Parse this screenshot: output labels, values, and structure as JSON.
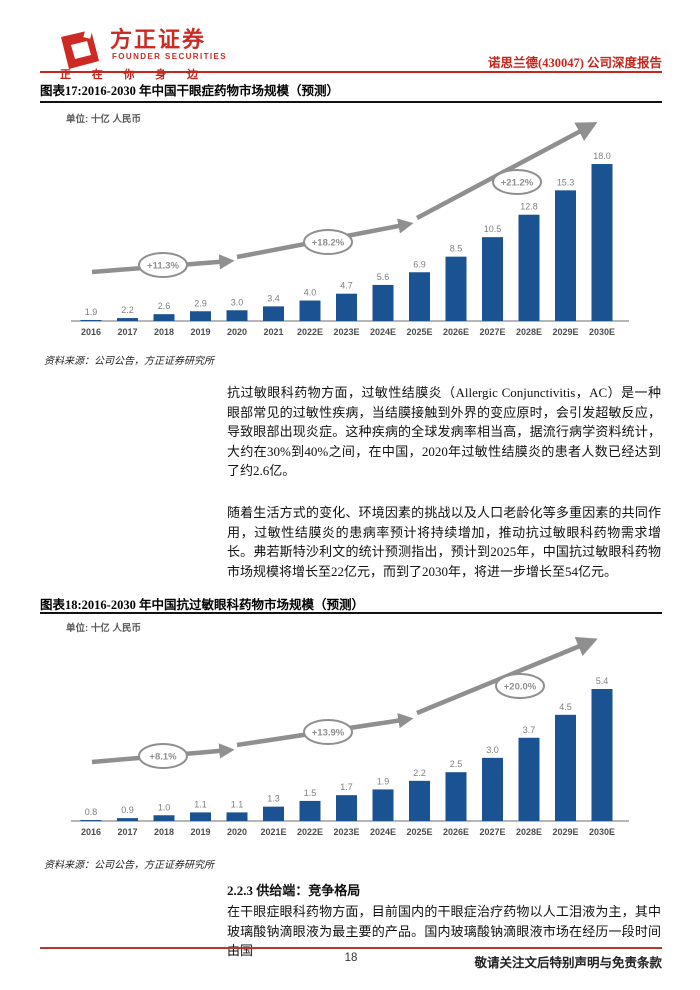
{
  "header": {
    "brand_cn": "方正证券",
    "brand_en": "FOUNDER SECURITIES",
    "slogan": "正 在 你 身 边",
    "report_tag": "诺思兰德(430047) 公司深度报告"
  },
  "colors": {
    "brand_red": "#ce2a24",
    "bar_blue": "#1b5291",
    "arrow_gray": "#8f8f8f",
    "value_label_gray": "#7f7f7f",
    "axis_label_gray": "#4d4d4d",
    "footer_rule_red": "#b03a2e"
  },
  "body": {
    "para1": "抗过敏眼科药物方面，过敏性结膜炎（Allergic Conjunctivitis，AC）是一种眼部常见的过敏性疾病，当结膜接触到外界的变应原时，会引发超敏反应，导致眼部出现炎症。这种疾病的全球发病率相当高，据流行病学资料统计，大约在30%到40%之间，在中国，2020年过敏性结膜炎的患者人数已经达到了约2.6亿。",
    "para2": "随着生活方式的变化、环境因素的挑战以及人口老龄化等多重因素的共同作用，过敏性结膜炎的患病率预计将持续增加，推动抗过敏眼科药物需求增长。弗若斯特沙利文的统计预测指出，预计到2025年，中国抗过敏眼科药物市场规模将增长至22亿元，而到了2030年，将进一步增长至54亿元。",
    "section_heading": "2.2.3 供给端：竞争格局",
    "para3": "在干眼症眼科药物方面，目前国内的干眼症治疗药物以人工泪液为主，其中玻璃酸钠滴眼液为最主要的产品。国内玻璃酸钠滴眼液市场在经历一段时间由国"
  },
  "footer": {
    "page_number": "18",
    "notice": "敬请关注文后特别声明与免责条款"
  },
  "chart_data": [
    {
      "type": "bar",
      "title": "图表17:2016-2030 年中国干眼症药物市场规模（预测）",
      "unit": "单位: 十亿 人民币",
      "source": "资料来源：公司公告，方正证券研究所",
      "categories": [
        "2016",
        "2017",
        "2018",
        "2019",
        "2020",
        "2021",
        "2022E",
        "2023E",
        "2024E",
        "2025E",
        "2026E",
        "2027E",
        "2028E",
        "2029E",
        "2030E"
      ],
      "values": [
        1.9,
        2.2,
        2.6,
        2.9,
        3.0,
        3.4,
        4.0,
        4.7,
        5.6,
        6.9,
        8.5,
        10.5,
        12.8,
        15.3,
        18.0
      ],
      "growth_annotations": [
        "+11.3%",
        "+18.2%",
        "+21.2%"
      ],
      "xlabel": "",
      "ylabel": "",
      "ylim": [
        1.9,
        18.4
      ],
      "grid": false,
      "legend": "none"
    },
    {
      "type": "bar",
      "title": "图表18:2016-2030 年中国抗过敏眼科药物市场规模（预测）",
      "unit": "单位: 十亿 人民币",
      "source": "资料来源：公司公告，方正证券研究所",
      "categories": [
        "2016",
        "2017",
        "2018",
        "2019",
        "2020",
        "2021E",
        "2022E",
        "2023E",
        "2024E",
        "2025E",
        "2026E",
        "2027E",
        "2028E",
        "2029E",
        "2030E"
      ],
      "values": [
        0.8,
        0.9,
        1.0,
        1.1,
        1.1,
        1.3,
        1.5,
        1.7,
        1.9,
        2.2,
        2.5,
        3.0,
        3.7,
        4.5,
        5.4
      ],
      "growth_annotations": [
        "+8.1%",
        "+13.9%",
        "+20.0%"
      ],
      "xlabel": "",
      "ylabel": "",
      "ylim": [
        0.8,
        5.5
      ],
      "grid": false,
      "legend": "none"
    }
  ]
}
